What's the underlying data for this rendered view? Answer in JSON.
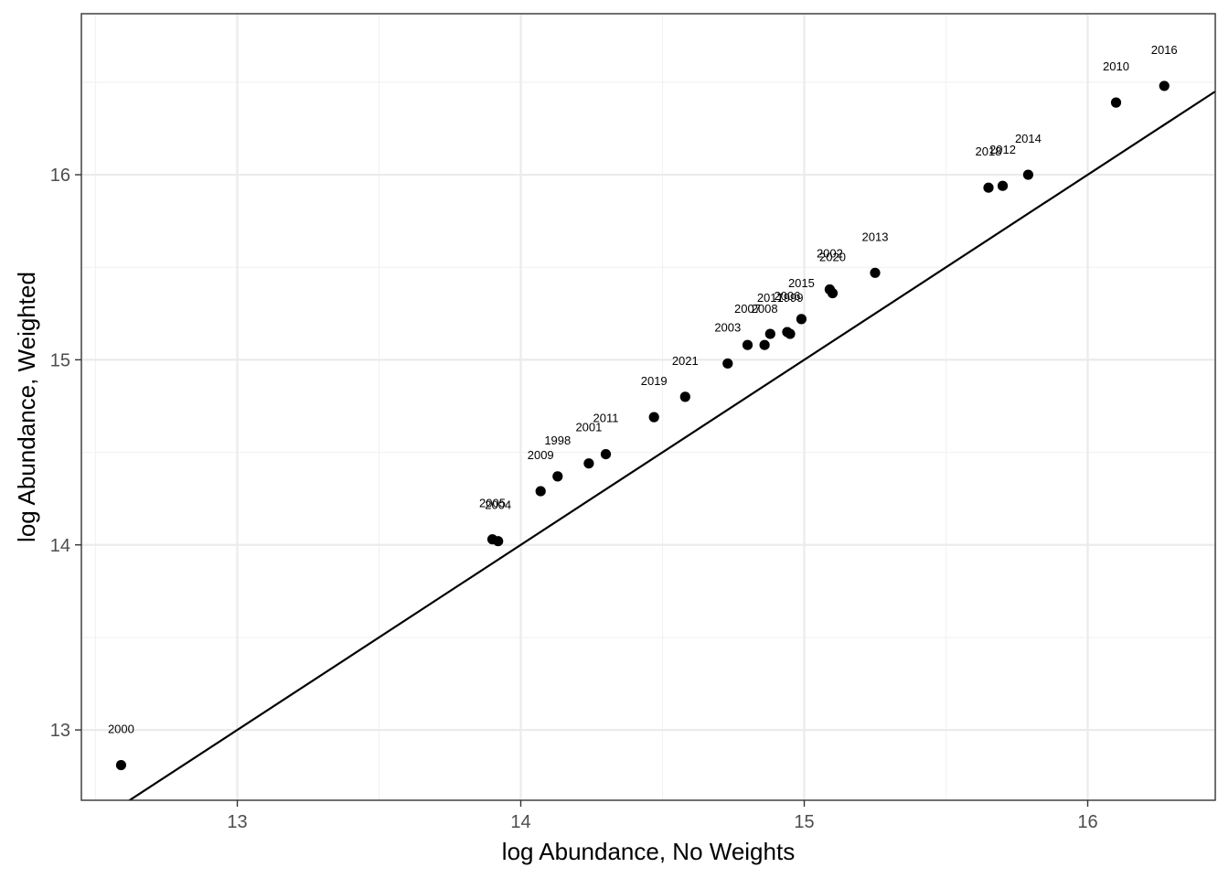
{
  "chart_data": {
    "type": "scatter",
    "title": "",
    "xlabel": "log Abundance, No Weights",
    "ylabel": "log Abundance, Weighted",
    "xlim": [
      12.45,
      16.45
    ],
    "ylim": [
      12.62,
      16.87
    ],
    "x_ticks": [
      13,
      14,
      15,
      16
    ],
    "y_ticks": [
      13,
      14,
      15,
      16
    ],
    "x_tick_labels": [
      "13",
      "14",
      "15",
      "16"
    ],
    "y_tick_labels": [
      "13",
      "14",
      "15",
      "16"
    ],
    "grid": true,
    "reference_line": {
      "type": "identity",
      "slope": 1,
      "intercept": 0
    },
    "points": [
      {
        "label": "2000",
        "x": 12.59,
        "y": 12.81
      },
      {
        "label": "2005",
        "x": 13.9,
        "y": 14.03
      },
      {
        "label": "2004",
        "x": 13.92,
        "y": 14.02
      },
      {
        "label": "2009",
        "x": 14.07,
        "y": 14.29
      },
      {
        "label": "1998",
        "x": 14.13,
        "y": 14.37
      },
      {
        "label": "2001",
        "x": 14.24,
        "y": 14.44
      },
      {
        "label": "2011",
        "x": 14.3,
        "y": 14.49
      },
      {
        "label": "2019",
        "x": 14.47,
        "y": 14.69
      },
      {
        "label": "2021",
        "x": 14.58,
        "y": 14.8
      },
      {
        "label": "2003",
        "x": 14.73,
        "y": 14.98
      },
      {
        "label": "2007",
        "x": 14.8,
        "y": 15.08
      },
      {
        "label": "2008",
        "x": 14.86,
        "y": 15.08
      },
      {
        "label": "2017",
        "x": 14.88,
        "y": 15.14
      },
      {
        "label": "2006",
        "x": 14.94,
        "y": 15.15
      },
      {
        "label": "1999",
        "x": 14.95,
        "y": 15.14
      },
      {
        "label": "2015",
        "x": 14.99,
        "y": 15.22
      },
      {
        "label": "2002",
        "x": 15.09,
        "y": 15.38
      },
      {
        "label": "2020",
        "x": 15.1,
        "y": 15.36
      },
      {
        "label": "2013",
        "x": 15.25,
        "y": 15.47
      },
      {
        "label": "2018",
        "x": 15.65,
        "y": 15.93
      },
      {
        "label": "2012",
        "x": 15.7,
        "y": 15.94
      },
      {
        "label": "2014",
        "x": 15.79,
        "y": 16.0
      },
      {
        "label": "2010",
        "x": 16.1,
        "y": 16.39
      },
      {
        "label": "2016",
        "x": 16.27,
        "y": 16.48
      }
    ],
    "colors": {
      "point": "#000000",
      "line": "#000000",
      "grid_major": "#ebebeb",
      "grid_minor": "#f2f2f2",
      "panel_border": "#333333"
    }
  }
}
